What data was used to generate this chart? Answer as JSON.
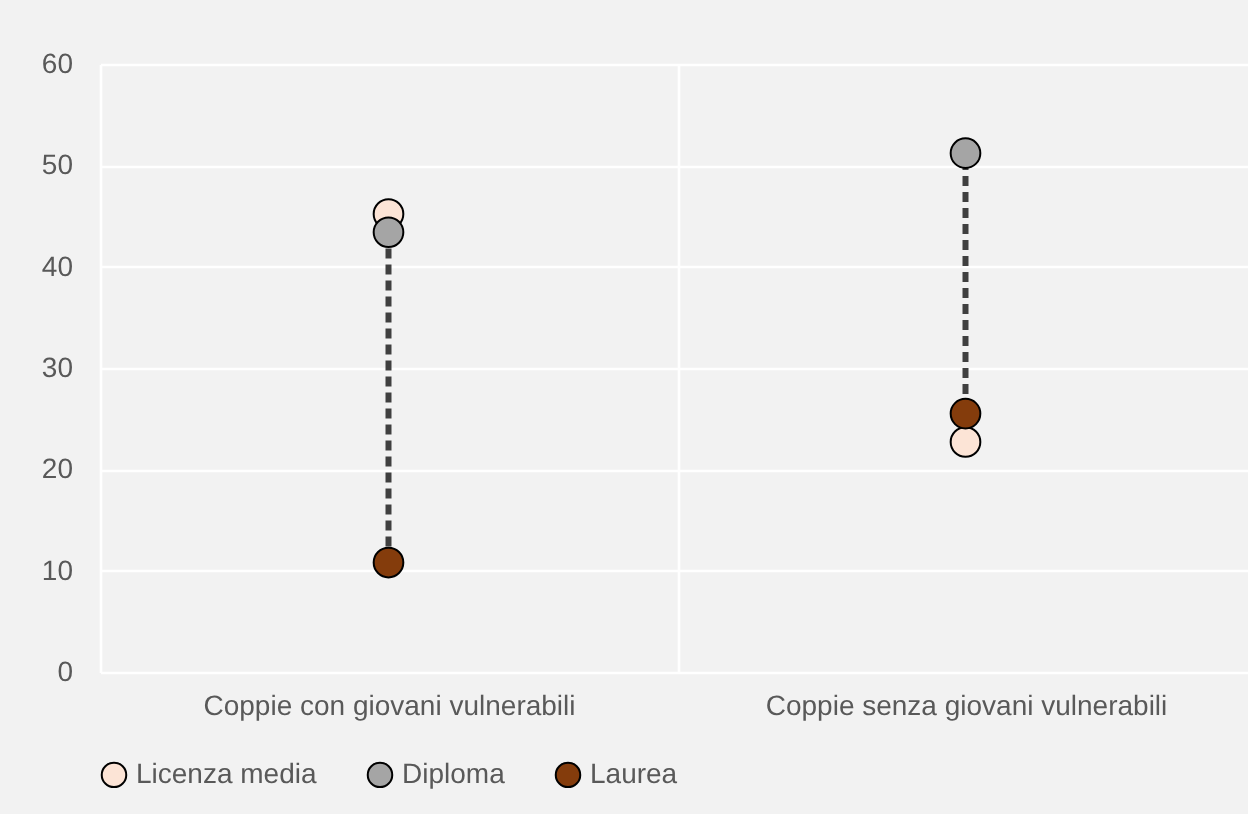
{
  "chart_data": {
    "type": "scatter",
    "categories": [
      "Coppie con giovani vulnerabili",
      "Coppie senza giovani vulnerabili"
    ],
    "series": [
      {
        "name": "Licenza media",
        "color": "#fce4d6",
        "values": [
          45.2,
          22.7
        ]
      },
      {
        "name": "Diploma",
        "color": "#a5a5a5",
        "values": [
          43.4,
          51.2
        ]
      },
      {
        "name": "Laurea",
        "color": "#843c0c",
        "values": [
          10.8,
          25.5
        ]
      }
    ],
    "ylim": [
      0,
      60
    ],
    "yticks": [
      0,
      10,
      20,
      30,
      40,
      50,
      60
    ],
    "grid": true,
    "legend": "bottom",
    "marker": "circle",
    "line_style": "dashed"
  }
}
